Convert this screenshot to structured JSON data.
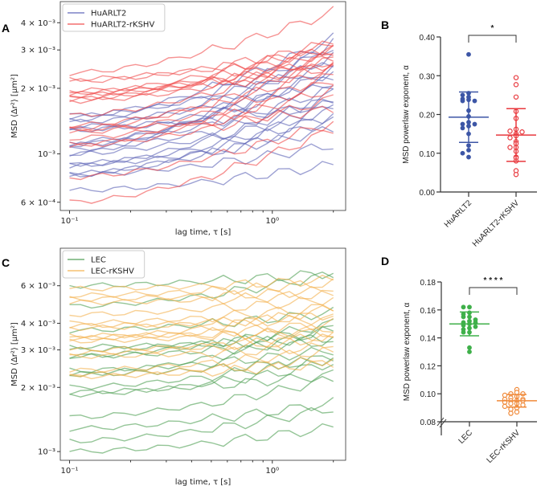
{
  "chart_data": [
    {
      "panel": "A",
      "type": "line",
      "xlabel": "lag time, τ [s]",
      "ylabel": "MSD ⟨Δr²⟩ [μm²]",
      "xscale": "log",
      "yscale": "log",
      "xlim": [
        0.09,
        2.3
      ],
      "ylim": [
        0.00055,
        0.005
      ],
      "x_ticks": [
        {
          "value": 0.1,
          "label": "10⁻¹"
        },
        {
          "value": 1,
          "label": "10⁰"
        }
      ],
      "y_ticks": [
        {
          "value": 0.004,
          "label": "4 × 10⁻³"
        },
        {
          "value": 0.003,
          "label": "3 × 10⁻³"
        },
        {
          "value": 0.002,
          "label": "2 × 10⁻³"
        },
        {
          "value": 0.001,
          "label": "10⁻³"
        },
        {
          "value": 0.0006,
          "label": "6 × 10⁻⁴"
        }
      ],
      "legend_position": "top-left",
      "x_range_of_curves": [
        0.1,
        2
      ],
      "series": [
        {
          "name": "HuARLT2",
          "color": "#5b63b6",
          "curves_start_end": [
            [
              0.00068,
              0.00089
            ],
            [
              0.0008,
              0.0011
            ],
            [
              0.00081,
              0.00145
            ],
            [
              0.00089,
              0.0013
            ],
            [
              0.0009,
              0.0015
            ],
            [
              0.001,
              0.0016
            ],
            [
              0.00105,
              0.0018
            ],
            [
              0.0011,
              0.0025
            ],
            [
              0.0011,
              0.002
            ],
            [
              0.00128,
              0.0021
            ],
            [
              0.00132,
              0.0028
            ],
            [
              0.0014,
              0.0022
            ],
            [
              0.00143,
              0.0031
            ],
            [
              0.00148,
              0.0034
            ],
            [
              0.0015,
              0.0026
            ],
            [
              0.00113,
              0.0024
            ],
            [
              0.00088,
              0.0019
            ],
            [
              0.0008,
              0.0017
            ],
            [
              0.001,
              0.0033
            ],
            [
              0.0013,
              0.0017
            ]
          ]
        },
        {
          "name": "HuARLT2-rKSHV",
          "color": "#f04a4a",
          "curves_start_end": [
            [
              0.0006,
              0.0013
            ],
            [
              0.00078,
              0.0014
            ],
            [
              0.00109,
              0.0018
            ],
            [
              0.0011,
              0.0022
            ],
            [
              0.00118,
              0.002
            ],
            [
              0.00125,
              0.0023
            ],
            [
              0.0013,
              0.0027
            ],
            [
              0.00135,
              0.0025
            ],
            [
              0.0015,
              0.0029
            ],
            [
              0.00175,
              0.0026
            ],
            [
              0.00178,
              0.003
            ],
            [
              0.0018,
              0.0028
            ],
            [
              0.00185,
              0.0031
            ],
            [
              0.00188,
              0.0027
            ],
            [
              0.0019,
              0.0033
            ],
            [
              0.00195,
              0.0025
            ],
            [
              0.00215,
              0.0032
            ],
            [
              0.0022,
              0.003
            ],
            [
              0.00235,
              0.0045
            ],
            [
              0.0013,
              0.0016
            ]
          ]
        }
      ]
    },
    {
      "panel": "B",
      "type": "scatter",
      "ylabel": "MSD powerlaw exponent, α",
      "ylim": [
        0,
        0.4
      ],
      "y_ticks": [
        "0.00",
        "0.10",
        "0.20",
        "0.30",
        "0.40"
      ],
      "categories": [
        "HuARLT2",
        "HuARLT2-rKSHV"
      ],
      "significance": "*",
      "series": [
        {
          "name": "HuARLT2",
          "color": "#3d56a6",
          "marker": "filled",
          "mean": 0.193,
          "sd": 0.065,
          "values": [
            0.355,
            0.255,
            0.25,
            0.245,
            0.24,
            0.238,
            0.235,
            0.235,
            0.21,
            0.195,
            0.18,
            0.175,
            0.175,
            0.17,
            0.165,
            0.15,
            0.12,
            0.108,
            0.1,
            0.09
          ]
        },
        {
          "name": "HuARLT2-rKSHV",
          "color": "#e8383d",
          "marker": "open",
          "mean": 0.147,
          "sd": 0.068,
          "values": [
            0.295,
            0.277,
            0.245,
            0.208,
            0.19,
            0.162,
            0.157,
            0.155,
            0.15,
            0.145,
            0.14,
            0.13,
            0.125,
            0.115,
            0.115,
            0.105,
            0.09,
            0.088,
            0.08,
            0.055,
            0.045
          ]
        }
      ]
    },
    {
      "panel": "C",
      "type": "line",
      "xlabel": "lag time, τ [s]",
      "ylabel": "MSD ⟨Δr²⟩ [μm²]",
      "xscale": "log",
      "yscale": "log",
      "xlim": [
        0.09,
        2.3
      ],
      "ylim": [
        0.00091,
        0.009
      ],
      "x_ticks": [
        {
          "value": 0.1,
          "label": "10⁻¹"
        },
        {
          "value": 1,
          "label": "10⁰"
        }
      ],
      "y_ticks": [
        {
          "value": 0.006,
          "label": "6 × 10⁻³"
        },
        {
          "value": 0.004,
          "label": "4 × 10⁻³"
        },
        {
          "value": 0.003,
          "label": "3 × 10⁻³"
        },
        {
          "value": 0.002,
          "label": "2 × 10⁻³"
        },
        {
          "value": 0.001,
          "label": "10⁻³"
        }
      ],
      "legend_position": "top-left",
      "x_range_of_curves": [
        0.1,
        2
      ],
      "series": [
        {
          "name": "LEC",
          "color": "#4c9e52",
          "curves_start_end": [
            [
              0.001,
              0.0013
            ],
            [
              0.00112,
              0.0016
            ],
            [
              0.00128,
              0.0017
            ],
            [
              0.00145,
              0.0022
            ],
            [
              0.00185,
              0.0026
            ],
            [
              0.0019,
              0.0023
            ],
            [
              0.002,
              0.0028
            ],
            [
              0.0023,
              0.0027
            ],
            [
              0.0023,
              0.0038
            ],
            [
              0.0024,
              0.003
            ],
            [
              0.0028,
              0.0033
            ],
            [
              0.003,
              0.0037
            ],
            [
              0.0031,
              0.0034
            ],
            [
              0.0037,
              0.0045
            ],
            [
              0.0048,
              0.0068
            ],
            [
              0.006,
              0.0069
            ],
            [
              0.0028,
              0.004
            ]
          ]
        },
        {
          "name": "LEC-rKSHV",
          "color": "#f3b04c",
          "curves_start_end": [
            [
              0.00225,
              0.0026
            ],
            [
              0.0023,
              0.0027
            ],
            [
              0.0024,
              0.003
            ],
            [
              0.0028,
              0.0031
            ],
            [
              0.0029,
              0.0035
            ],
            [
              0.003,
              0.0034
            ],
            [
              0.0033,
              0.0038
            ],
            [
              0.0034,
              0.004
            ],
            [
              0.0034,
              0.0047
            ],
            [
              0.0038,
              0.0044
            ],
            [
              0.0039,
              0.0042
            ],
            [
              0.004,
              0.0048
            ],
            [
              0.0044,
              0.0052
            ],
            [
              0.005,
              0.0055
            ],
            [
              0.0052,
              0.0057
            ],
            [
              0.0054,
              0.0062
            ],
            [
              0.0058,
              0.0064
            ],
            [
              0.0035,
              0.0036
            ]
          ]
        }
      ]
    },
    {
      "panel": "D",
      "type": "scatter",
      "ylabel": "MSD powerlaw exponent, α",
      "ylim": [
        0.08,
        0.18
      ],
      "axis_break": true,
      "y_ticks": [
        "0.08",
        "0.10",
        "0.12",
        "0.14",
        "0.16",
        "0.18"
      ],
      "categories": [
        "LEC",
        "LEC-rKSHV"
      ],
      "significance": "* * * *",
      "series": [
        {
          "name": "LEC",
          "color": "#3fb04a",
          "marker": "filled",
          "mean": 0.15,
          "sd": 0.0085,
          "values": [
            0.162,
            0.162,
            0.158,
            0.157,
            0.155,
            0.155,
            0.153,
            0.152,
            0.151,
            0.151,
            0.15,
            0.149,
            0.148,
            0.147,
            0.146,
            0.144,
            0.144,
            0.133,
            0.13
          ]
        },
        {
          "name": "LEC-rKSHV",
          "color": "#f08a3a",
          "marker": "open",
          "mean": 0.095,
          "sd": 0.0045,
          "values": [
            0.103,
            0.101,
            0.1,
            0.1,
            0.099,
            0.098,
            0.097,
            0.096,
            0.096,
            0.095,
            0.095,
            0.095,
            0.094,
            0.093,
            0.093,
            0.092,
            0.091,
            0.09,
            0.089,
            0.087,
            0.086
          ]
        }
      ]
    }
  ],
  "panel_letters": [
    "A",
    "B",
    "C",
    "D"
  ]
}
